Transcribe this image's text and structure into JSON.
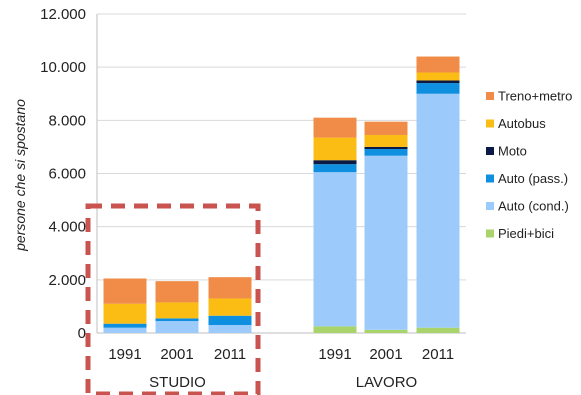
{
  "chart_data": {
    "type": "bar",
    "stacked": true,
    "title": "",
    "ylabel": "persone che si spostano",
    "ylim": [
      0,
      12000
    ],
    "yticks": [
      "0",
      "2.000",
      "4.000",
      "6.000",
      "8.000",
      "10.000",
      "12.000"
    ],
    "grid": true,
    "legend_position": "right",
    "groups": [
      {
        "label": "STUDIO",
        "categories": [
          "1991",
          "2001",
          "2011"
        ]
      },
      {
        "label": "LAVORO",
        "categories": [
          "1991",
          "2001",
          "2011"
        ]
      }
    ],
    "series": [
      {
        "name": "Piedi+bici",
        "color": "#a9d46b",
        "values": [
          0,
          0,
          0,
          250,
          120,
          200
        ]
      },
      {
        "name": "Auto (cond.)",
        "color": "#9ccbfb",
        "values": [
          200,
          450,
          300,
          5800,
          6550,
          8800
        ]
      },
      {
        "name": "Auto (pass.)",
        "color": "#0f8fe0",
        "values": [
          150,
          100,
          350,
          300,
          250,
          400
        ]
      },
      {
        "name": "Moto",
        "color": "#0b1a45",
        "values": [
          0,
          0,
          0,
          150,
          80,
          100
        ]
      },
      {
        "name": "Autobus",
        "color": "#fbbd14",
        "values": [
          750,
          600,
          650,
          850,
          450,
          300
        ]
      },
      {
        "name": "Treno+metro",
        "color": "#f08c47",
        "values": [
          950,
          800,
          800,
          750,
          500,
          600
        ]
      }
    ],
    "highlight": {
      "group": "STUDIO",
      "style": "dashed",
      "color": "#c9534f"
    }
  }
}
